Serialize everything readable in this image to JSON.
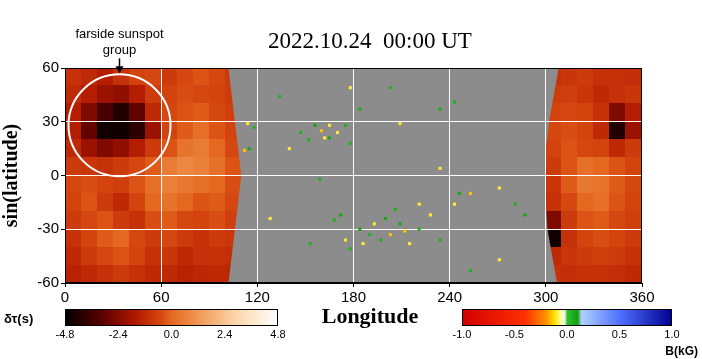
{
  "chart_data": {
    "type": "heatmap",
    "title": "2022.10.24  00:00 UT",
    "x_label": "Longitude",
    "y_label": "sin(latitude)",
    "xlim": [
      0,
      360
    ],
    "xticks": [
      0,
      60,
      120,
      180,
      240,
      300,
      360
    ],
    "ylim": [
      -60,
      60
    ],
    "yticks": [
      -60,
      -30,
      0,
      30,
      60
    ],
    "grid": true,
    "lon_bins": [
      0,
      10,
      20,
      30,
      40,
      50,
      60,
      70,
      80,
      90,
      100,
      110,
      120,
      130,
      140,
      150,
      160,
      170,
      180,
      190,
      200,
      210,
      220,
      230,
      240,
      250,
      260,
      270,
      280,
      290,
      300,
      310,
      320,
      330,
      340,
      350,
      360
    ],
    "lat_bins": [
      60,
      50,
      40,
      30,
      20,
      10,
      0,
      -10,
      -20,
      -30,
      -40,
      -50,
      -60
    ],
    "cells": [
      [
        -1.0,
        -1.2,
        -1.5,
        -1.0,
        -0.6,
        -0.5,
        -0.8,
        -0.5,
        -0.3,
        -0.5,
        -0.8,
        null,
        null,
        null,
        null,
        null,
        null,
        null,
        null,
        null,
        null,
        null,
        null,
        null,
        null,
        null,
        null,
        null,
        null,
        null,
        -1.0,
        -0.9,
        -0.8,
        -1.0,
        -1.0,
        -1.1
      ],
      [
        -1.2,
        -1.5,
        -2.0,
        -2.2,
        -1.5,
        -0.8,
        -0.6,
        -0.4,
        -0.5,
        -0.6,
        -0.8,
        null,
        null,
        null,
        null,
        null,
        null,
        null,
        null,
        null,
        null,
        null,
        null,
        null,
        null,
        null,
        null,
        null,
        null,
        null,
        -0.8,
        -0.7,
        -0.9,
        -1.2,
        -1.0,
        -0.9
      ],
      [
        -1.5,
        -2.5,
        -3.5,
        -4.2,
        -3.0,
        -1.2,
        -0.5,
        -0.3,
        -0.2,
        -0.5,
        -0.7,
        null,
        null,
        null,
        null,
        null,
        null,
        null,
        null,
        null,
        null,
        null,
        null,
        null,
        null,
        null,
        null,
        null,
        null,
        null,
        -0.6,
        -0.5,
        -0.6,
        -1.0,
        -2.5,
        -1.5
      ],
      [
        -1.5,
        -3.0,
        -4.5,
        -4.5,
        -4.0,
        -2.0,
        -0.6,
        -0.2,
        0.2,
        -0.3,
        -0.6,
        null,
        null,
        null,
        null,
        null,
        null,
        null,
        null,
        null,
        null,
        null,
        null,
        null,
        null,
        null,
        null,
        null,
        null,
        null,
        -0.5,
        -0.4,
        -0.6,
        -1.2,
        -4.2,
        -2.0
      ],
      [
        -1.2,
        -2.0,
        -2.5,
        -2.2,
        -1.5,
        -0.8,
        -0.3,
        0.3,
        0.5,
        0.0,
        -0.5,
        null,
        null,
        null,
        null,
        null,
        null,
        null,
        null,
        null,
        null,
        null,
        null,
        null,
        null,
        null,
        null,
        null,
        null,
        null,
        -0.6,
        -0.3,
        -0.5,
        -0.6,
        -1.2,
        -0.8
      ],
      [
        -0.8,
        -0.9,
        -1.0,
        -0.8,
        -0.5,
        -0.2,
        0.5,
        0.8,
        0.6,
        0.2,
        -0.3,
        null,
        null,
        null,
        null,
        null,
        null,
        null,
        null,
        null,
        null,
        null,
        null,
        null,
        null,
        null,
        null,
        null,
        null,
        null,
        -0.8,
        -0.3,
        0.2,
        0.0,
        -0.3,
        -0.6
      ],
      [
        -0.5,
        -0.4,
        -0.6,
        -0.7,
        -0.3,
        0.2,
        0.6,
        0.4,
        0.2,
        0.0,
        -0.4,
        null,
        null,
        null,
        null,
        null,
        null,
        null,
        null,
        null,
        null,
        null,
        null,
        null,
        null,
        null,
        null,
        null,
        null,
        null,
        -0.9,
        -0.2,
        0.4,
        0.3,
        -0.2,
        -0.5
      ],
      [
        -0.6,
        -0.3,
        -0.8,
        -1.2,
        -0.6,
        0.0,
        0.3,
        0.0,
        -0.3,
        -0.2,
        -0.5,
        null,
        null,
        null,
        null,
        null,
        null,
        null,
        null,
        null,
        null,
        null,
        null,
        null,
        null,
        null,
        null,
        null,
        null,
        null,
        -1.0,
        -0.5,
        0.0,
        0.2,
        -0.3,
        -0.6
      ],
      [
        -0.8,
        -0.5,
        -0.3,
        -0.8,
        -1.0,
        -0.4,
        -0.2,
        -0.5,
        -0.6,
        -0.4,
        -0.7,
        null,
        null,
        null,
        null,
        null,
        null,
        null,
        null,
        null,
        null,
        null,
        null,
        null,
        null,
        null,
        null,
        null,
        null,
        null,
        -2.5,
        -0.8,
        -0.3,
        -0.2,
        -0.5,
        -0.7
      ],
      [
        -1.0,
        -0.6,
        -0.2,
        0.0,
        -0.5,
        -0.8,
        -0.5,
        -0.8,
        -1.0,
        -0.8,
        -0.9,
        null,
        null,
        null,
        null,
        null,
        null,
        null,
        null,
        null,
        null,
        null,
        null,
        null,
        null,
        null,
        null,
        null,
        null,
        null,
        -4.5,
        -1.0,
        -0.6,
        -0.4,
        -0.6,
        -0.8
      ],
      [
        -1.2,
        -0.8,
        -0.5,
        -0.3,
        -0.6,
        -1.0,
        -0.9,
        -1.2,
        -1.0,
        -1.0,
        -1.1,
        null,
        null,
        null,
        null,
        null,
        null,
        null,
        null,
        null,
        null,
        null,
        null,
        null,
        null,
        null,
        null,
        null,
        null,
        null,
        -1.2,
        -0.9,
        -0.8,
        -0.7,
        -0.8,
        -1.0
      ],
      [
        -1.4,
        -1.2,
        -1.0,
        -0.8,
        -1.0,
        -1.2,
        -1.2,
        -1.4,
        -1.3,
        -1.2,
        -1.3,
        null,
        null,
        null,
        null,
        null,
        null,
        null,
        null,
        null,
        null,
        null,
        null,
        null,
        null,
        null,
        null,
        null,
        null,
        null,
        -1.0,
        -1.1,
        -1.0,
        -1.0,
        -1.1,
        -1.2
      ]
    ],
    "nearside": {
      "lat": [
        60,
        45,
        30,
        15,
        0,
        -15,
        -30,
        -45,
        -60
      ],
      "left_lon": [
        102,
        104,
        106,
        108,
        110,
        108,
        106,
        104,
        102
      ],
      "right_lon": [
        308,
        305,
        302,
        300,
        300,
        300,
        301,
        304,
        307
      ]
    },
    "magnetogram": {
      "lon": [
        147,
        165,
        175,
        178,
        156,
        184,
        243,
        234,
        160,
        162,
        165,
        140,
        209,
        115,
        112,
        118,
        114,
        172,
        184,
        197,
        209,
        221,
        178,
        153,
        246,
        234,
        206,
        287,
        281,
        203,
        193,
        215,
        228,
        253,
        243,
        175,
        221,
        271,
        134,
        203,
        253,
        159,
        178,
        234,
        128,
        271,
        168,
        190,
        200,
        186,
        212,
        170,
        152
      ],
      "lat": [
        24,
        21,
        28,
        18,
        28,
        37,
        41,
        37,
        25,
        21,
        28,
        15,
        29,
        15,
        14,
        27,
        29,
        -22,
        -30,
        -36,
        -27,
        -30,
        -41,
        -38,
        -10,
        -36,
        -19,
        -22,
        -16,
        -33,
        -27,
        -38,
        -22,
        -10,
        -16,
        -36,
        -16,
        -7,
        44,
        49,
        -53,
        -2,
        49,
        4,
        -24,
        -47,
        -25,
        -33,
        -24,
        -38,
        -31,
        24,
        20
      ],
      "b": [
        0.05,
        0.08,
        0.05,
        0.05,
        0.08,
        0.05,
        0.05,
        0.05,
        -0.15,
        -0.1,
        -0.1,
        -0.1,
        -0.1,
        0.08,
        -0.15,
        0.05,
        -0.1,
        0.08,
        0.08,
        0.05,
        0.08,
        0.05,
        0.05,
        0.05,
        0.08,
        0.05,
        0.05,
        0.08,
        0.05,
        -0.15,
        -0.1,
        -0.1,
        -0.1,
        -0.15,
        -0.1,
        -0.1,
        -0.1,
        -0.1,
        0.05,
        0.05,
        0.05,
        0.05,
        -0.1,
        -0.1,
        -0.1,
        -0.1,
        0.05,
        0.05,
        0.08,
        -0.1,
        -0.15,
        -0.1,
        0.05
      ]
    },
    "colorbar": {
      "label": "δτ(s)",
      "range": [
        -4.8,
        4.8
      ],
      "ticks": [
        -4.8,
        -2.4,
        {
          "value": 0,
          "label": "0.0"
        },
        2.4,
        4.8
      ]
    },
    "colorbar_b": {
      "label": "B(kG)",
      "range": [
        -1.0,
        1.0
      ],
      "ticks": [
        {
          "value": -1,
          "label": "-1.0"
        },
        -0.5,
        {
          "value": 0,
          "label": "0.0"
        },
        0.5,
        {
          "value": 1,
          "label": "1.0"
        }
      ]
    },
    "annotation": {
      "text": [
        "farside sunspot",
        "group"
      ],
      "lon": 34,
      "lat": 28
    }
  }
}
